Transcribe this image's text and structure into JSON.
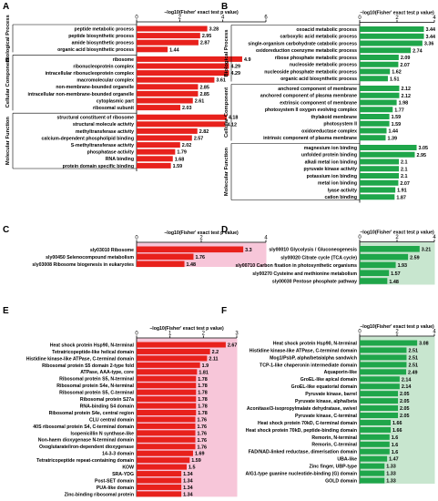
{
  "chart_data": [
    {
      "panel": "A",
      "type": "bar",
      "orientation": "horizontal",
      "xlabel": "−log10(Fisher' exact test p value)",
      "xlim": [
        0,
        6
      ],
      "xticks": [
        0,
        2,
        4,
        6
      ],
      "bar_color": "#e8211c",
      "groups": [
        {
          "name": "Biological Process",
          "categories": [
            "peptide metabolic process",
            "peptide biosynthetic process",
            "amide biosynthetic process",
            "organic acid biosynthetic process"
          ],
          "values": [
            3.28,
            2.95,
            2.87,
            1.44
          ]
        },
        {
          "name": "Cellular Component",
          "categories": [
            "ribosome",
            "ribonucleoprotein complex",
            "intracellular ribonucleoprotein complex",
            "macromolecular complex",
            "non-membrane-bounded organelle",
            "intracellular non-membrane-bounded organelle",
            "cytoplasmic part",
            "ribosomal subunit"
          ],
          "values": [
            4.9,
            4.29,
            4.29,
            3.61,
            2.85,
            2.85,
            2.61,
            2.03
          ]
        },
        {
          "name": "Molecular Function",
          "categories": [
            "structural constituent of ribosome",
            "structural molecule activity",
            "methyltransferase activity",
            "calcium-dependent phospholipid binding",
            "S-methyltransferase activity",
            "phosphatase activity",
            "RNA binding",
            "protein domain specific binding"
          ],
          "values": [
            4.18,
            4.12,
            2.82,
            2.57,
            2.02,
            1.79,
            1.68,
            1.59
          ]
        }
      ]
    },
    {
      "panel": "B",
      "type": "bar",
      "orientation": "horizontal",
      "xlabel": "−log10(Fisher' exact test p value)",
      "xlim": [
        0,
        4
      ],
      "xticks": [
        0,
        2,
        4
      ],
      "bar_color": "#1fa64a",
      "groups": [
        {
          "name": "Biological Process",
          "categories": [
            "oxoacid metabolic process",
            "carboxylic acid metabolic process",
            "single-organism carbohydrate catabolic process",
            "oxidoreduction coenzyme metabolic process",
            "ribose phosphate metabolic process",
            "nucleoside metabolic process",
            "nucleoside phosphate metabolic process",
            "organic acid biosynthetic process"
          ],
          "values": [
            3.44,
            3.44,
            3.36,
            2.74,
            2.09,
            2.07,
            1.62,
            1.51
          ]
        },
        {
          "name": "Cellular Component",
          "categories": [
            "anchored component of membrane",
            "anchored component of plasma membrane",
            "extrinsic component of membrane",
            "photosystem II oxygen evolving complex",
            "thylakoid membrane",
            "photosystem II",
            "oxidoreductase complex",
            "intrinsic component of plasma membrane"
          ],
          "values": [
            2.12,
            2.12,
            1.98,
            1.77,
            1.59,
            1.59,
            1.44,
            1.39
          ]
        },
        {
          "name": "Molecular Function",
          "categories": [
            "magnesium ion binding",
            "unfolded protein binding",
            "alkali metal ion binding",
            "pyruvate kinase activity",
            "potassium ion binding",
            "metal ion binding",
            "lyase activity",
            "cation binding"
          ],
          "values": [
            3.05,
            2.95,
            2.1,
            2.1,
            2.1,
            2.07,
            1.91,
            1.87
          ]
        }
      ]
    },
    {
      "panel": "C",
      "type": "bar",
      "orientation": "horizontal",
      "xlabel": "−log10(Fisher' exact test p value)",
      "xlim": [
        0,
        4
      ],
      "xticks": [
        0,
        2,
        4
      ],
      "bar_color": "#e8211c",
      "background": "#f7c6d9",
      "categories": [
        "sly03010 Ribosome",
        "sly00450 Selenocompound metabolism",
        "sly03008 Ribosome biogenesis in eukaryotes"
      ],
      "values": [
        3.3,
        1.76,
        1.48
      ]
    },
    {
      "panel": "D",
      "type": "bar",
      "orientation": "horizontal",
      "xlabel": "−log10(Fisher' exact test p value)",
      "xlim": [
        0,
        4
      ],
      "xticks": [
        0,
        2,
        4
      ],
      "bar_color": "#1fa64a",
      "background": "#c8e6cf",
      "categories": [
        "sly00010 Glycolysis / Gluconeogenesis",
        "sly00020 Citrate cycle (TCA cycle)",
        "sly00710 Carbon fixation in photosynthetic organisms",
        "sly00270 Cysteine and methionine metabolism",
        "sly00030 Pentose phosphate pathway"
      ],
      "values": [
        3.21,
        2.59,
        1.93,
        1.57,
        1.48
      ]
    },
    {
      "panel": "E",
      "type": "bar",
      "orientation": "horizontal",
      "xlabel": "−log10(Fisher' exact test p value)",
      "xlim": [
        0,
        3
      ],
      "xticks": [
        0,
        1,
        2,
        3
      ],
      "bar_color": "#e8211c",
      "background": "#f7c6d9",
      "categories": [
        "Heat shock protein Hsp90, N-terminal",
        "Tetratricopeptide-like helical domain",
        "Histidine kinase-like ATPase, C-terminal domain",
        "Ribosomal protein S5 domain 2-type fold",
        "ATPase, AAA-type, core",
        "Ribosomal protein S5, N-terminal",
        "Ribosomal protein S4e, N-terminal",
        "Ribosomal protein S5, C-terminal",
        "Ribosomal protein S27a",
        "RNA-binding S4 domain",
        "Ribosomal protein S4e, central region",
        "CLU central domain",
        "40S ribosomal protein S4, C-terminal domain",
        "Isopenicillin N synthase-like",
        "Non-haem dioxygenase N-terminal domain",
        "Oxoglutarate/iron-dependent dioxygenase",
        "14-3-3 domain",
        "Tetratricopeptide repeat-containing domain",
        "KOW",
        "SRA-YDG",
        "Post-SET domain",
        "PUA-like domain",
        "Zinc-binding ribosomal protein"
      ],
      "values": [
        2.67,
        2.2,
        2.11,
        1.9,
        1.81,
        1.78,
        1.78,
        1.78,
        1.78,
        1.78,
        1.78,
        1.76,
        1.76,
        1.76,
        1.76,
        1.76,
        1.69,
        1.59,
        1.5,
        1.34,
        1.34,
        1.34,
        1.34
      ]
    },
    {
      "panel": "F",
      "type": "bar",
      "orientation": "horizontal",
      "xlabel": "−log10(Fisher' exact test p value)",
      "xlim": [
        0,
        4
      ],
      "xticks": [
        0,
        2,
        4
      ],
      "bar_color": "#1fa64a",
      "background": "#c8e6cf",
      "categories": [
        "Heat shock protein Hsp90, N-terminal",
        "Histidine kinase-like ATPase, C-terminal domain",
        "Mog1/PsbP, alpha/beta/alpha sandwich",
        "TCP-1-like chaperonin intermediate domain",
        "Aquaporin-like",
        "GroEL-like apical domain",
        "GroEL-like equatorial domain",
        "Pyruvate kinase, barrel",
        "Pyruvate kinase, alpha/beta",
        "Aconitase/3-isopropylmalate dehydratase, swivel",
        "Pyruvate kinase, C-terminal",
        "Heat shock protein 70kD, C-terminal domain",
        "Heat shock protein 70kD, peptide-binding domain",
        "Remorin, N-terminal",
        "Remorin, C-terminal",
        "FAD/NAD-linked reductase, dimerisation domain",
        "UBA-like",
        "Zinc finger, UBP-type",
        "AIG1-type guanine nucleotide-binding (G) domain",
        "GOLD domain"
      ],
      "values": [
        3.08,
        2.51,
        2.51,
        2.51,
        2.49,
        2.14,
        2.14,
        2.05,
        2.05,
        2.05,
        2.05,
        1.66,
        1.66,
        1.6,
        1.6,
        1.6,
        1.47,
        1.33,
        1.33,
        1.33
      ]
    }
  ]
}
